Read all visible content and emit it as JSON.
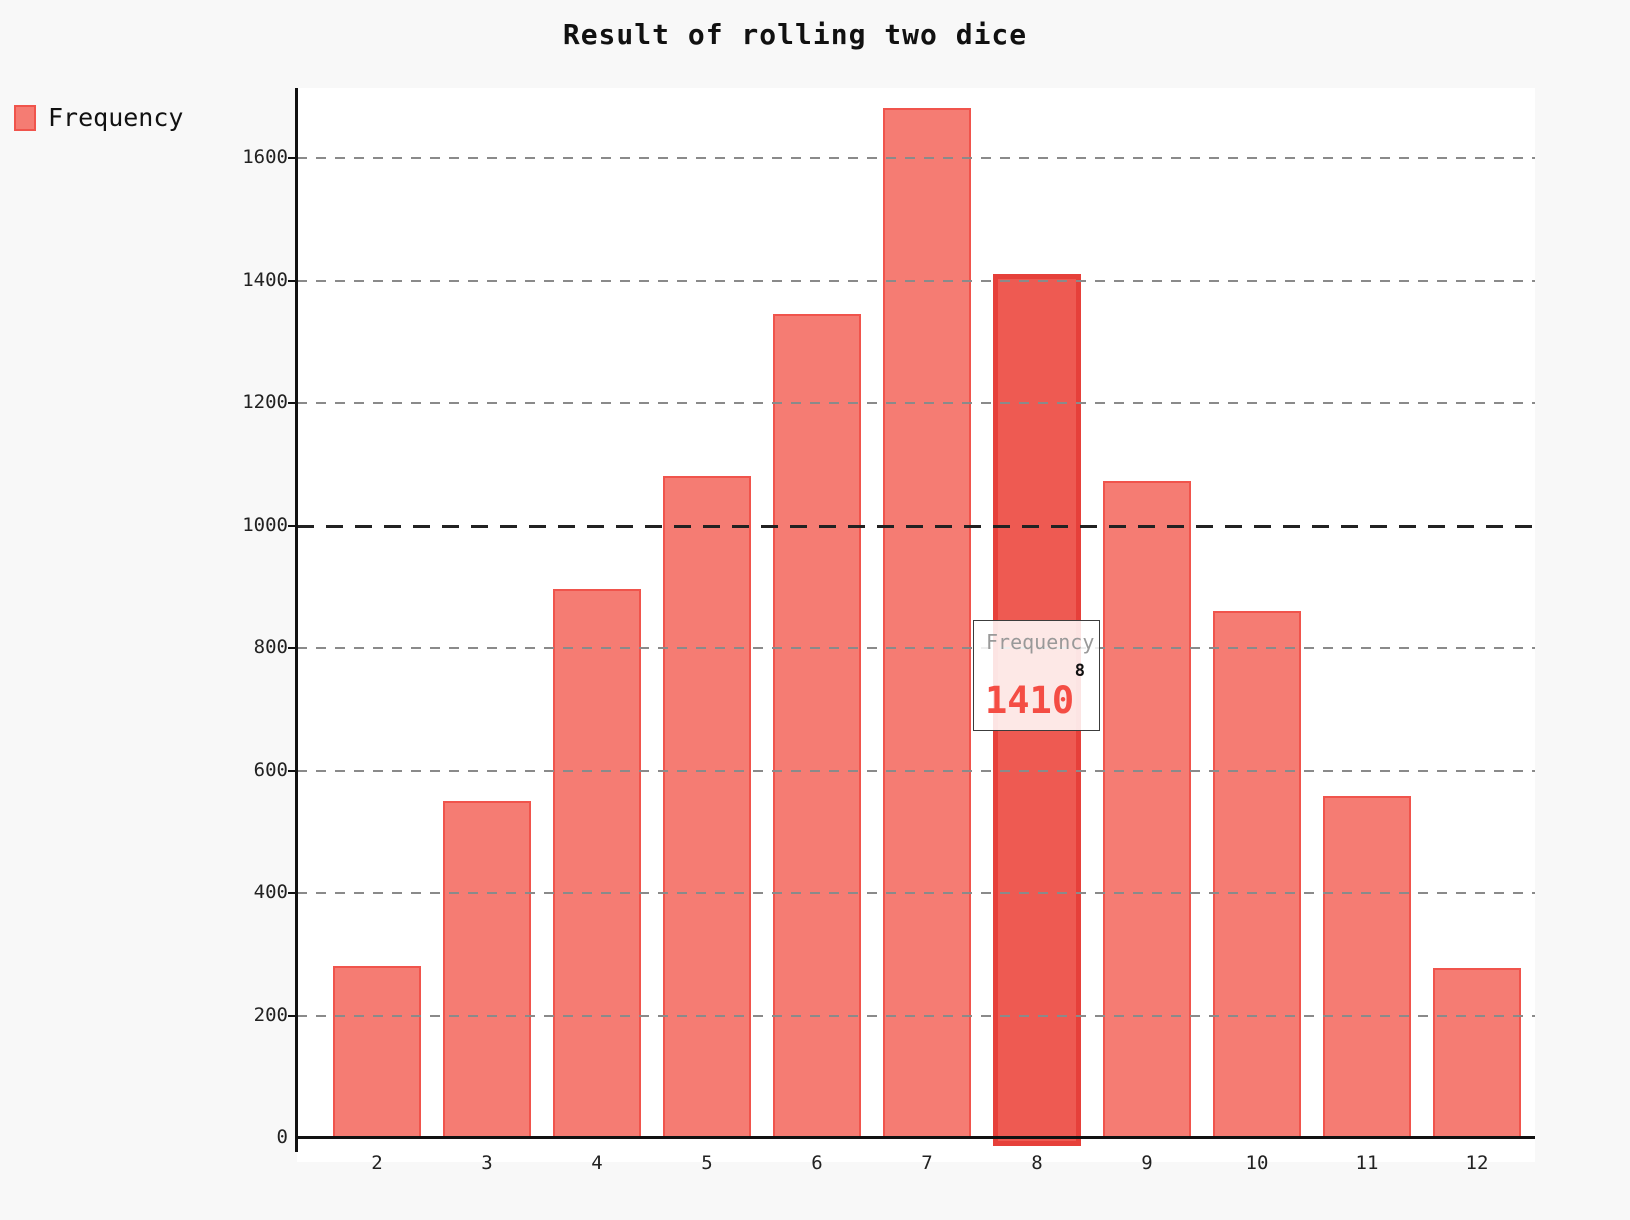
{
  "chart_data": {
    "type": "bar",
    "title": "Result of rolling two dice",
    "categories": [
      "2",
      "3",
      "4",
      "5",
      "6",
      "7",
      "8",
      "9",
      "10",
      "11",
      "12"
    ],
    "series": [
      {
        "name": "Frequency",
        "values": [
          280,
          550,
          897,
          1080,
          1346,
          1682,
          1410,
          1073,
          861,
          558,
          278
        ]
      }
    ],
    "xlabel": "",
    "ylabel": "",
    "ylim": [
      0,
      1714
    ],
    "yticks": [
      0,
      200,
      400,
      600,
      800,
      1000,
      1200,
      1400,
      1600
    ],
    "emphasized_ytick": 1000,
    "grid": "horizontal-dashed-over-bars",
    "legend_position": "top-left",
    "highlighted_category": "8",
    "highlighted_value": 1410
  },
  "legend": {
    "label": "Frequency"
  },
  "tooltip": {
    "title": "Frequency",
    "category": "8",
    "value": "1410"
  },
  "colors": {
    "background": "#f8f8f8",
    "plot_background": "#ffffff",
    "bar_fill": "#f57c73",
    "bar_border": "#f0544c",
    "bar_active_fill": "#ee5a52",
    "bar_active_border": "#e6403a",
    "tooltip_value": "#f44d44",
    "grid_line": "#8a8a8a",
    "grid_line_strong": "#222222",
    "axis": "#111111"
  }
}
